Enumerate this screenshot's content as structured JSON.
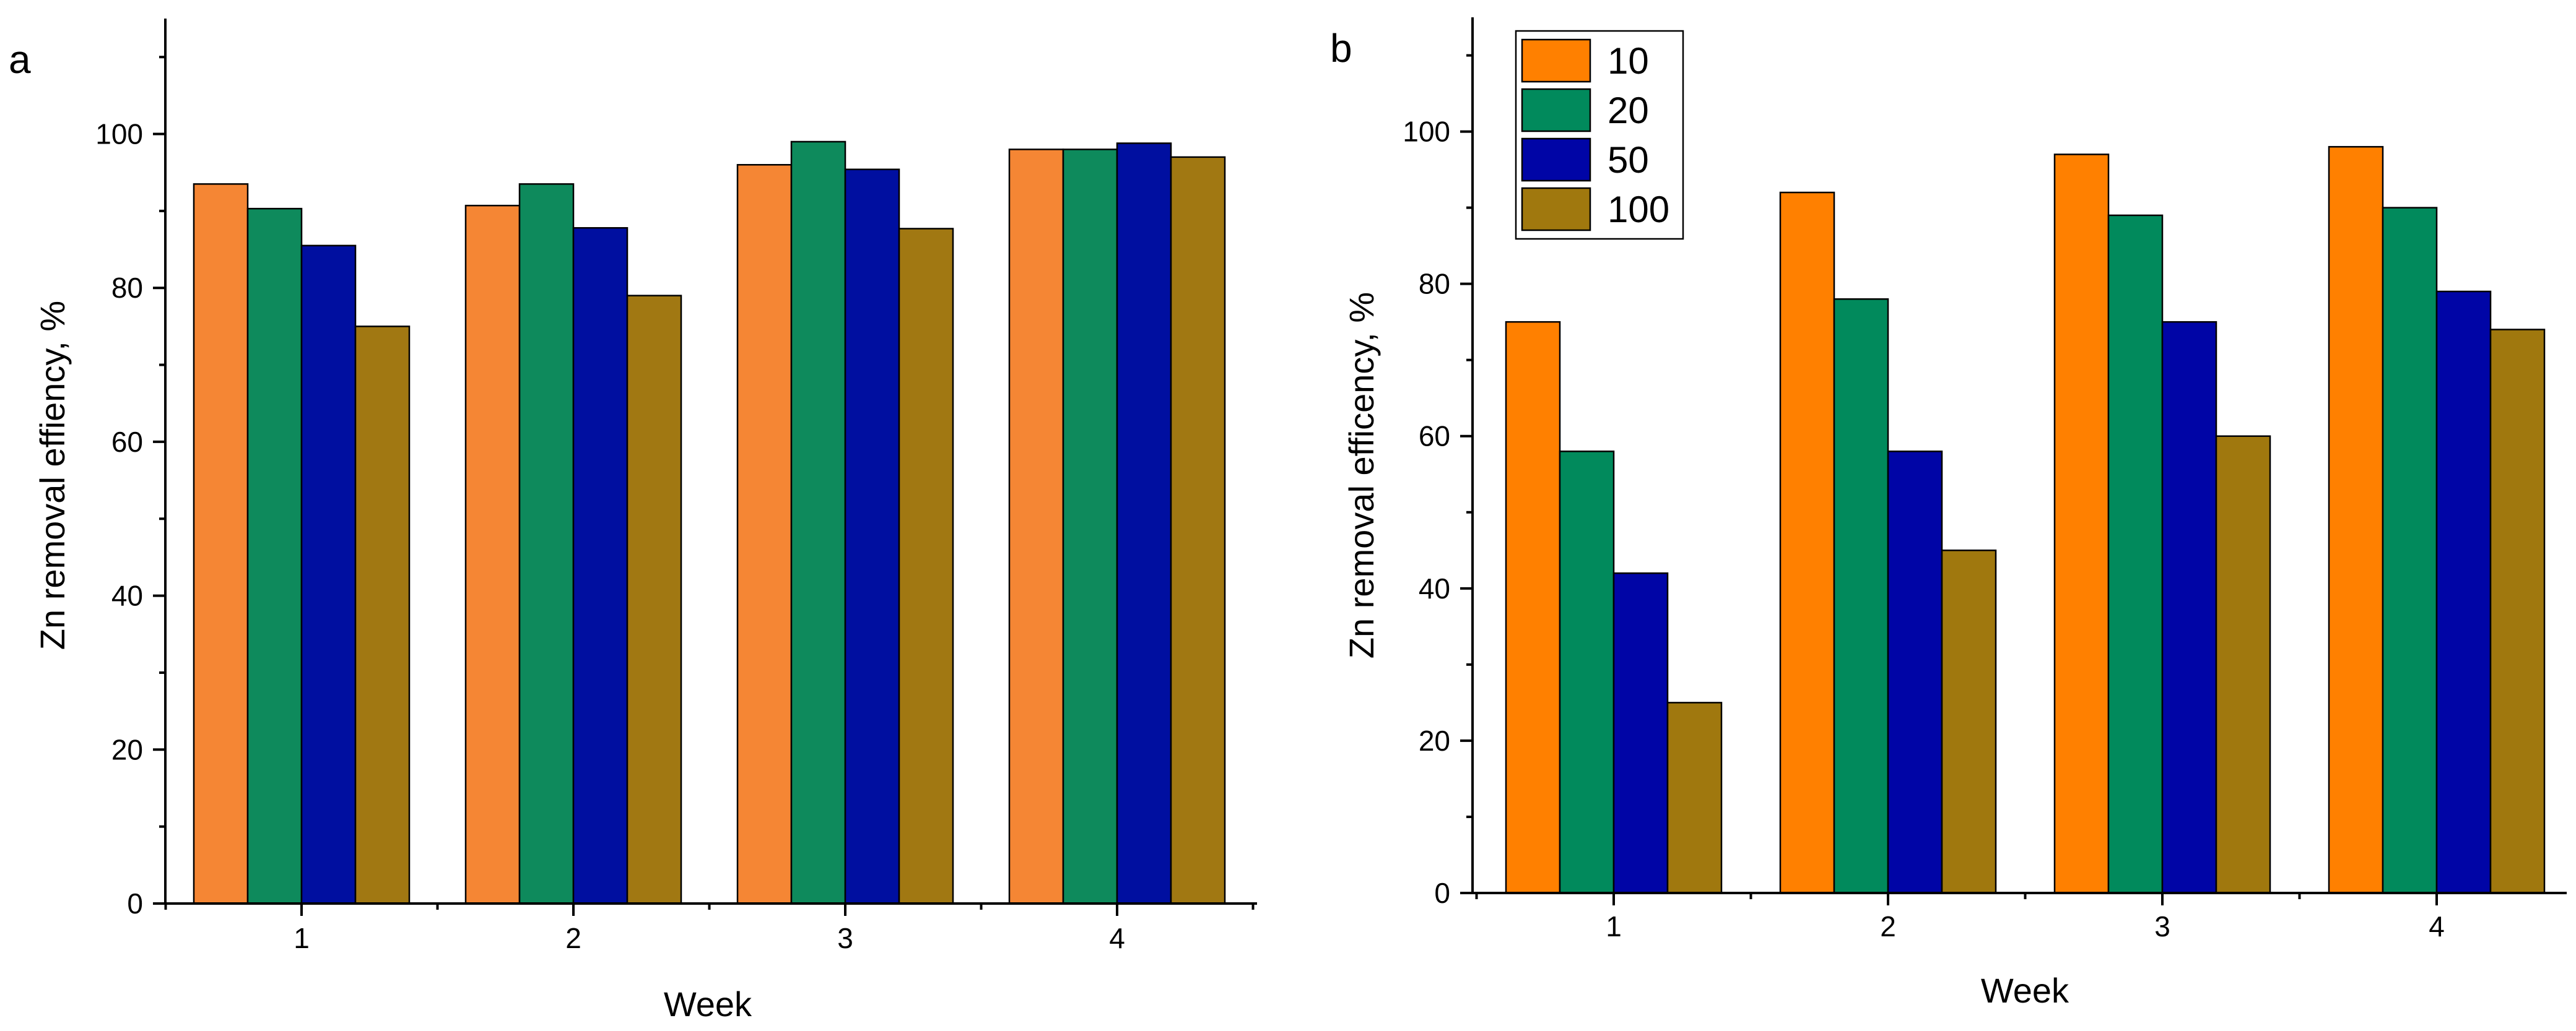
{
  "chart_data": [
    {
      "panel": "a",
      "type": "bar",
      "categories": [
        "1",
        "2",
        "3",
        "4"
      ],
      "series": [
        {
          "name": "10",
          "values": [
            93.5,
            90.7,
            96,
            98
          ]
        },
        {
          "name": "20",
          "values": [
            90.3,
            93.5,
            99,
            98
          ]
        },
        {
          "name": "50",
          "values": [
            85.5,
            87.8,
            95.4,
            98.8
          ]
        },
        {
          "name": "100",
          "values": [
            75,
            79,
            87.7,
            97
          ]
        }
      ],
      "colors": [
        "#F58634",
        "#0E8A5C",
        "#000FA0",
        "#A17812"
      ],
      "xlabel": "Week",
      "ylabel": "Zn removal effiency, %",
      "ylim": [
        0,
        115
      ],
      "yticks": [
        "0",
        "20",
        "40",
        "60",
        "80",
        "100"
      ],
      "legend": false
    },
    {
      "panel": "b",
      "type": "bar",
      "categories": [
        "1",
        "2",
        "3",
        "4"
      ],
      "series": [
        {
          "name": "10",
          "values": [
            75,
            92,
            97,
            98
          ]
        },
        {
          "name": "20",
          "values": [
            58,
            78,
            89,
            90
          ]
        },
        {
          "name": "50",
          "values": [
            42,
            58,
            75,
            79
          ]
        },
        {
          "name": "100",
          "values": [
            25,
            45,
            60,
            74
          ]
        }
      ],
      "colors": [
        "#FF8000",
        "#018A5C",
        "#0005A6",
        "#A0780E"
      ],
      "xlabel": "Week",
      "ylabel": "Zn removal efficency, %",
      "ylim": [
        0,
        115
      ],
      "yticks": [
        "0",
        "20",
        "40",
        "60",
        "80",
        "100"
      ],
      "legend": "top-left"
    }
  ]
}
